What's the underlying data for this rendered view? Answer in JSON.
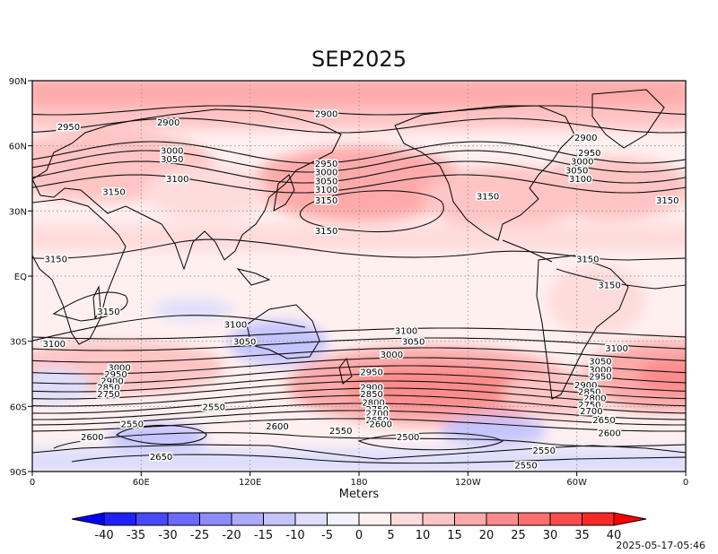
{
  "title": "SEP2025",
  "axis_label": "Meters",
  "timestamp": "2025-05-17-05:46",
  "lat_labels": [
    "90N",
    "60N",
    "30N",
    "EQ",
    "30S",
    "60S",
    "90S"
  ],
  "lon_labels": [
    "0",
    "60E",
    "120E",
    "180",
    "120W",
    "60W",
    "0"
  ],
  "colorbar": {
    "ticks": [
      "-40",
      "-35",
      "-30",
      "-25",
      "-20",
      "-15",
      "-10",
      "-5",
      "0",
      "5",
      "10",
      "15",
      "20",
      "25",
      "30",
      "35",
      "40"
    ],
    "colors": [
      "#2020ff",
      "#4848ff",
      "#6a6aff",
      "#8c8cff",
      "#aaaaff",
      "#c4c4ff",
      "#dedefc",
      "#f2f2ff",
      "#fff0f0",
      "#ffdcdc",
      "#ffc4c4",
      "#ffaaaa",
      "#ff8c8c",
      "#ff6e6e",
      "#ff4c4c",
      "#ff2828"
    ],
    "under_color": "#0000ff",
    "over_color": "#ff0000"
  },
  "contour_labels": [
    {
      "t": "2900",
      "lon": 75,
      "lat": 71
    },
    {
      "t": "2950",
      "lon": 20,
      "lat": 69
    },
    {
      "t": "2900",
      "lon": 162,
      "lat": 75
    },
    {
      "t": "3000",
      "lon": 77,
      "lat": 58
    },
    {
      "t": "3050",
      "lon": 77,
      "lat": 54
    },
    {
      "t": "3100",
      "lon": 80,
      "lat": 45
    },
    {
      "t": "3150",
      "lon": 45,
      "lat": 39
    },
    {
      "t": "2950",
      "lon": 162,
      "lat": 52
    },
    {
      "t": "3000",
      "lon": 162,
      "lat": 48
    },
    {
      "t": "3050",
      "lon": 162,
      "lat": 44
    },
    {
      "t": "3100",
      "lon": 162,
      "lat": 40
    },
    {
      "t": "3150",
      "lon": 162,
      "lat": 35
    },
    {
      "t": "3150",
      "lon": 162,
      "lat": 21
    },
    {
      "t": "3150",
      "lon": 251,
      "lat": 37
    },
    {
      "t": "2900",
      "lon": 305,
      "lat": 64
    },
    {
      "t": "2950",
      "lon": 307,
      "lat": 57
    },
    {
      "t": "3000",
      "lon": 303,
      "lat": 53
    },
    {
      "t": "3050",
      "lon": 300,
      "lat": 49
    },
    {
      "t": "3100",
      "lon": 302,
      "lat": 45
    },
    {
      "t": "3150",
      "lon": 350,
      "lat": 35
    },
    {
      "t": "3150",
      "lon": 13,
      "lat": 8
    },
    {
      "t": "3150",
      "lon": 306,
      "lat": 8
    },
    {
      "t": "3150",
      "lon": 318,
      "lat": -4
    },
    {
      "t": "3150",
      "lon": 42,
      "lat": -16
    },
    {
      "t": "3100",
      "lon": 112,
      "lat": -22
    },
    {
      "t": "3100",
      "lon": 12,
      "lat": -31
    },
    {
      "t": "3050",
      "lon": 117,
      "lat": -30
    },
    {
      "t": "3100",
      "lon": 206,
      "lat": -25
    },
    {
      "t": "3050",
      "lon": 210,
      "lat": -30
    },
    {
      "t": "3000",
      "lon": 198,
      "lat": -36
    },
    {
      "t": "2950",
      "lon": 187,
      "lat": -44
    },
    {
      "t": "2900",
      "lon": 187,
      "lat": -51
    },
    {
      "t": "2850",
      "lon": 187,
      "lat": -54
    },
    {
      "t": "2800",
      "lon": 188,
      "lat": -58
    },
    {
      "t": "2750",
      "lon": 190,
      "lat": -61
    },
    {
      "t": "2700",
      "lon": 190,
      "lat": -63
    },
    {
      "t": "2650",
      "lon": 190,
      "lat": -66
    },
    {
      "t": "2600",
      "lon": 192,
      "lat": -68
    },
    {
      "t": "3000",
      "lon": 48,
      "lat": -42
    },
    {
      "t": "2950",
      "lon": 46,
      "lat": -45
    },
    {
      "t": "2900",
      "lon": 44,
      "lat": -48
    },
    {
      "t": "2850",
      "lon": 42,
      "lat": -51
    },
    {
      "t": "2750",
      "lon": 42,
      "lat": -54
    },
    {
      "t": "3100",
      "lon": 322,
      "lat": -33
    },
    {
      "t": "3050",
      "lon": 313,
      "lat": -39
    },
    {
      "t": "3000",
      "lon": 313,
      "lat": -43
    },
    {
      "t": "2950",
      "lon": 313,
      "lat": -46
    },
    {
      "t": "2900",
      "lon": 305,
      "lat": -50
    },
    {
      "t": "2850",
      "lon": 307,
      "lat": -53
    },
    {
      "t": "2800",
      "lon": 310,
      "lat": -56
    },
    {
      "t": "2750",
      "lon": 307,
      "lat": -59
    },
    {
      "t": "2700",
      "lon": 308,
      "lat": -62
    },
    {
      "t": "2650",
      "lon": 315,
      "lat": -66
    },
    {
      "t": "2600",
      "lon": 318,
      "lat": -72
    },
    {
      "t": "2550",
      "lon": 100,
      "lat": -60
    },
    {
      "t": "2550",
      "lon": 55,
      "lat": -68
    },
    {
      "t": "2600",
      "lon": 33,
      "lat": -74
    },
    {
      "t": "2600",
      "lon": 135,
      "lat": -69
    },
    {
      "t": "2550",
      "lon": 170,
      "lat": -71
    },
    {
      "t": "2500",
      "lon": 207,
      "lat": -74
    },
    {
      "t": "2550",
      "lon": 282,
      "lat": -80
    },
    {
      "t": "2550",
      "lon": 272,
      "lat": -87
    },
    {
      "t": "2650",
      "lon": 71,
      "lat": -83
    }
  ]
}
